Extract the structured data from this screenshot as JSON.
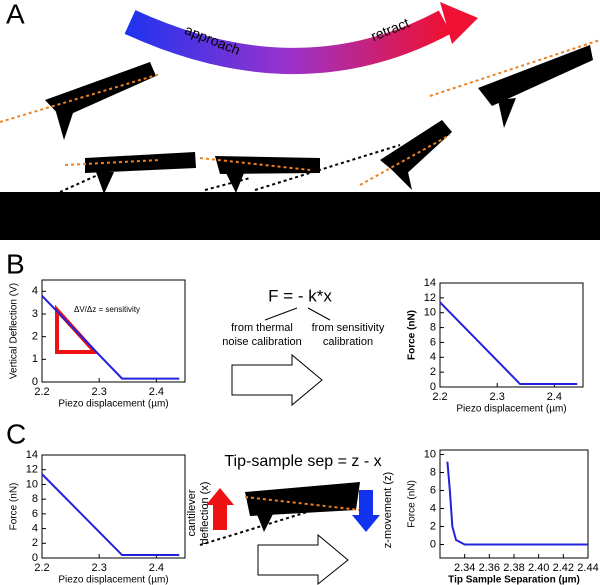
{
  "panels": {
    "a": "A",
    "b": "B",
    "c": "C"
  },
  "diagram": {
    "approach": "approach",
    "retract": "retract",
    "formula": "F = - k*x",
    "thermal_note": [
      "from thermal",
      "noise calibration"
    ],
    "sensitivity_note": [
      "from sensitivity",
      "calibration"
    ],
    "separation_formula": "Tip-sample sep = z - x",
    "deflection_label": [
      "cantilever",
      "deflection (x)"
    ],
    "z_label": "z-movement (z)"
  },
  "chart_data": [
    {
      "type": "line",
      "x_label": "Piezo displacement (µm)",
      "y_label": "Vertical Deflection (V)",
      "annotation": "ΔV/Δz = sensitivity",
      "x": [
        2.2,
        2.34,
        2.44
      ],
      "values": [
        3.8,
        0.15,
        0.15
      ],
      "color": "#2222dd",
      "xlim": [
        2.2,
        2.45
      ],
      "xticks": [
        2.2,
        2.3,
        2.4
      ],
      "ylim": [
        0,
        4.5
      ],
      "yticks": [
        0,
        1,
        2,
        3,
        4
      ]
    },
    {
      "type": "line",
      "x_label": "Piezo displacement (µm)",
      "y_label": "Force (nN)",
      "y_label_color": "#e02020",
      "x": [
        2.2,
        2.34,
        2.44
      ],
      "values": [
        11.4,
        0.4,
        0.4
      ],
      "color": "#2222dd",
      "xlim": [
        2.2,
        2.45
      ],
      "xticks": [
        2.2,
        2.3,
        2.4
      ],
      "ylim": [
        0,
        14
      ],
      "yticks": [
        0,
        2,
        4,
        6,
        8,
        10,
        12,
        14
      ]
    },
    {
      "type": "line",
      "x_label": "Piezo displacement (µm)",
      "y_label": "Force (nN)",
      "x": [
        2.2,
        2.34,
        2.44
      ],
      "values": [
        11.4,
        0.4,
        0.4
      ],
      "color": "#2222dd",
      "xlim": [
        2.2,
        2.45
      ],
      "xticks": [
        2.2,
        2.3,
        2.4
      ],
      "ylim": [
        0,
        14
      ],
      "yticks": [
        0,
        2,
        4,
        6,
        8,
        10,
        12,
        14
      ]
    },
    {
      "type": "line",
      "x_label": "Tip Sample Separation (µm)",
      "x_label_color": "#e02020",
      "y_label": "Force (nN)",
      "x": [
        2.326,
        2.328,
        2.33,
        2.333,
        2.34,
        2.44
      ],
      "values": [
        9.2,
        6,
        2,
        0.5,
        0,
        0
      ],
      "color": "#2222dd",
      "xlim": [
        2.32,
        2.44
      ],
      "xticks": [
        2.34,
        2.36,
        2.38,
        {
          "value": 2.4,
          "label": "2.40"
        },
        2.42,
        2.44
      ],
      "ylim": [
        -1.5,
        10.5
      ],
      "yticks": [
        0,
        2,
        4,
        6,
        8,
        10
      ]
    }
  ]
}
